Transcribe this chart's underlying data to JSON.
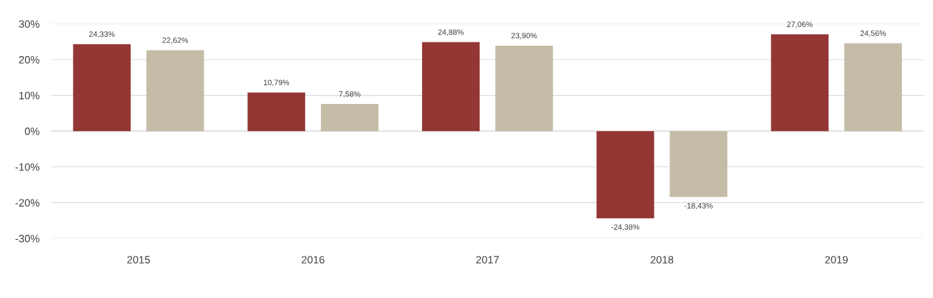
{
  "chart_data": {
    "type": "bar",
    "categories": [
      "2015",
      "2016",
      "2017",
      "2018",
      "2019"
    ],
    "series": [
      {
        "color": "#943634",
        "values": [
          24.33,
          10.79,
          24.88,
          -24.38,
          27.06
        ],
        "value_labels": [
          "24,33%",
          "10,79%",
          "24,88%",
          "-24,38%",
          "27,06%"
        ]
      },
      {
        "color": "#c4bca7",
        "values": [
          22.62,
          7.58,
          23.9,
          -18.43,
          24.56
        ],
        "value_labels": [
          "22,62%",
          "7,58%",
          "23,90%",
          "-18,43%",
          "24,56%"
        ]
      }
    ],
    "ylim": [
      -30,
      30
    ],
    "yticks": [
      {
        "value": -30,
        "label": "-30%"
      },
      {
        "value": -20,
        "label": "-20%"
      },
      {
        "value": -10,
        "label": "-10%"
      },
      {
        "value": 0,
        "label": "0%"
      },
      {
        "value": 10,
        "label": "10%"
      },
      {
        "value": 20,
        "label": "20%"
      },
      {
        "value": 30,
        "label": "30%"
      }
    ],
    "grid": "y",
    "legend": false
  }
}
